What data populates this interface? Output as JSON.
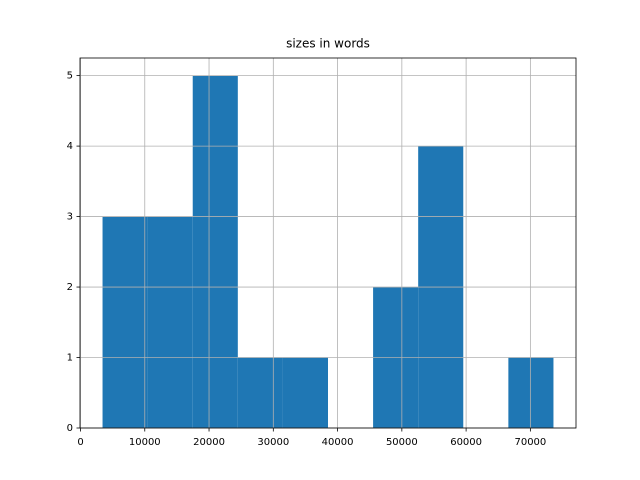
{
  "chart_data": {
    "type": "histogram",
    "title": "sizes in words",
    "bins": [
      3430,
      10446,
      17462,
      24478,
      31494,
      38510,
      45526,
      52542,
      59558,
      66574,
      73590
    ],
    "values": [
      3,
      3,
      5,
      1,
      1,
      0,
      2,
      4,
      0,
      1
    ],
    "color": "#1f77b4",
    "xlim": [
      -78,
      77098
    ],
    "xticks": [
      0,
      10000,
      20000,
      30000,
      40000,
      50000,
      60000,
      70000
    ],
    "ylim": [
      0,
      5.25
    ],
    "yticks": [
      0,
      1,
      2,
      3,
      4,
      5
    ],
    "grid": true
  }
}
